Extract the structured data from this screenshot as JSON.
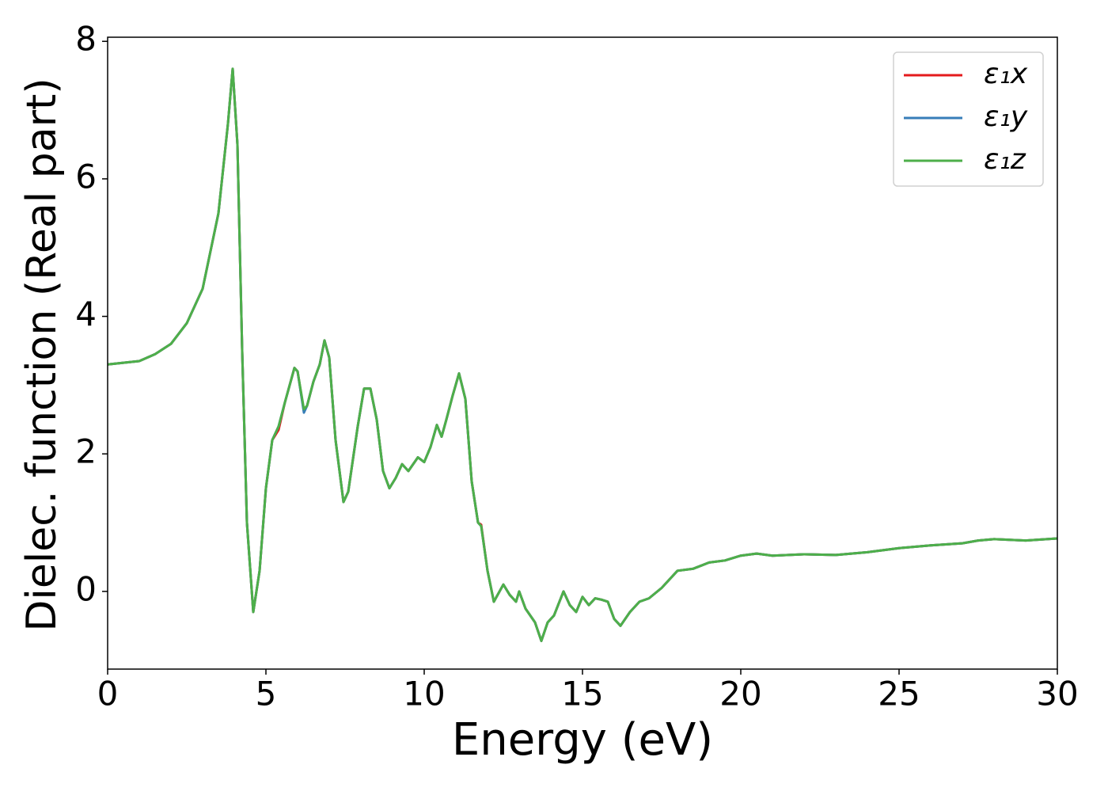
{
  "chart_data": {
    "type": "line",
    "xlabel": "Energy (eV)",
    "ylabel": "Dielec. function (Real part)",
    "x": [
      0,
      1,
      1.5,
      2,
      2.5,
      3,
      3.5,
      3.8,
      3.95,
      4.1,
      4.25,
      4.4,
      4.6,
      4.8,
      5.0,
      5.2,
      5.4,
      5.6,
      5.9,
      6.0,
      6.2,
      6.3,
      6.5,
      6.7,
      6.85,
      7.0,
      7.2,
      7.45,
      7.6,
      7.9,
      8.1,
      8.3,
      8.5,
      8.7,
      8.9,
      9.1,
      9.3,
      9.5,
      9.8,
      10.0,
      10.2,
      10.4,
      10.55,
      10.7,
      10.9,
      11.1,
      11.3,
      11.5,
      11.7,
      11.8,
      12.0,
      12.2,
      12.5,
      12.7,
      12.9,
      13.0,
      13.2,
      13.5,
      13.7,
      13.9,
      14.1,
      14.4,
      14.6,
      14.8,
      15.0,
      15.2,
      15.4,
      15.6,
      15.8,
      16.0,
      16.2,
      16.5,
      16.8,
      17.1,
      17.5,
      18.0,
      18.5,
      19.0,
      19.5,
      20.0,
      20.5,
      21,
      22,
      23,
      23.5,
      24,
      25,
      26,
      27,
      27.5,
      28,
      29,
      30
    ],
    "series": [
      {
        "name": "ε₁x",
        "color": "#e41a1c",
        "values": [
          3.3,
          3.35,
          3.45,
          3.6,
          3.9,
          4.4,
          5.5,
          6.8,
          7.6,
          6.5,
          3.5,
          1.0,
          -0.3,
          0.3,
          1.5,
          2.2,
          2.35,
          2.75,
          3.25,
          3.2,
          2.62,
          2.7,
          3.05,
          3.3,
          3.65,
          3.4,
          2.2,
          1.3,
          1.45,
          2.4,
          2.95,
          2.95,
          2.5,
          1.75,
          1.5,
          1.65,
          1.85,
          1.75,
          1.95,
          1.88,
          2.1,
          2.42,
          2.25,
          2.5,
          2.85,
          3.17,
          2.8,
          1.6,
          1.0,
          0.97,
          0.3,
          -0.15,
          0.1,
          -0.05,
          -0.15,
          0.0,
          -0.25,
          -0.45,
          -0.72,
          -0.45,
          -0.35,
          0.0,
          -0.2,
          -0.3,
          -0.08,
          -0.2,
          -0.1,
          -0.12,
          -0.15,
          -0.4,
          -0.5,
          -0.3,
          -0.15,
          -0.1,
          0.05,
          0.3,
          0.33,
          0.42,
          0.45,
          0.52,
          0.55,
          0.52,
          0.54,
          0.53,
          0.55,
          0.57,
          0.63,
          0.67,
          0.7,
          0.74,
          0.76,
          0.74,
          0.77
        ]
      },
      {
        "name": "ε₁y",
        "color": "#377eb8",
        "values": [
          3.3,
          3.35,
          3.45,
          3.6,
          3.9,
          4.4,
          5.5,
          6.8,
          7.6,
          6.5,
          3.5,
          1.0,
          -0.3,
          0.3,
          1.5,
          2.2,
          2.4,
          2.75,
          3.25,
          3.2,
          2.6,
          2.7,
          3.05,
          3.3,
          3.65,
          3.4,
          2.2,
          1.3,
          1.45,
          2.4,
          2.95,
          2.95,
          2.5,
          1.75,
          1.5,
          1.65,
          1.85,
          1.75,
          1.95,
          1.88,
          2.1,
          2.42,
          2.25,
          2.5,
          2.85,
          3.17,
          2.8,
          1.6,
          1.0,
          0.95,
          0.3,
          -0.15,
          0.1,
          -0.05,
          -0.15,
          0.0,
          -0.25,
          -0.45,
          -0.72,
          -0.45,
          -0.35,
          0.0,
          -0.2,
          -0.3,
          -0.08,
          -0.2,
          -0.1,
          -0.12,
          -0.15,
          -0.4,
          -0.5,
          -0.3,
          -0.15,
          -0.1,
          0.05,
          0.3,
          0.33,
          0.42,
          0.45,
          0.52,
          0.55,
          0.52,
          0.54,
          0.53,
          0.55,
          0.57,
          0.63,
          0.67,
          0.7,
          0.74,
          0.76,
          0.74,
          0.77
        ]
      },
      {
        "name": "ε₁z",
        "color": "#4daf4a",
        "values": [
          3.3,
          3.35,
          3.45,
          3.6,
          3.9,
          4.4,
          5.5,
          6.8,
          7.6,
          6.5,
          3.5,
          1.0,
          -0.3,
          0.3,
          1.5,
          2.2,
          2.4,
          2.75,
          3.25,
          3.2,
          2.65,
          2.7,
          3.05,
          3.3,
          3.65,
          3.4,
          2.2,
          1.3,
          1.45,
          2.4,
          2.95,
          2.95,
          2.5,
          1.75,
          1.5,
          1.65,
          1.85,
          1.75,
          1.95,
          1.88,
          2.1,
          2.42,
          2.25,
          2.5,
          2.85,
          3.17,
          2.8,
          1.6,
          1.0,
          0.95,
          0.3,
          -0.15,
          0.1,
          -0.05,
          -0.15,
          0.0,
          -0.25,
          -0.45,
          -0.72,
          -0.45,
          -0.35,
          0.0,
          -0.2,
          -0.3,
          -0.08,
          -0.2,
          -0.1,
          -0.12,
          -0.15,
          -0.4,
          -0.5,
          -0.3,
          -0.15,
          -0.1,
          0.05,
          0.3,
          0.33,
          0.42,
          0.45,
          0.52,
          0.55,
          0.52,
          0.54,
          0.53,
          0.55,
          0.57,
          0.63,
          0.67,
          0.7,
          0.74,
          0.76,
          0.74,
          0.77
        ]
      }
    ],
    "xlim": [
      0,
      30
    ],
    "xticks": [
      0,
      5,
      10,
      15,
      20,
      25,
      30
    ],
    "ylim": [
      -1.13,
      8.06
    ],
    "yticks": [
      0,
      2,
      4,
      6,
      8
    ],
    "legend": "upper right",
    "grid": false
  }
}
